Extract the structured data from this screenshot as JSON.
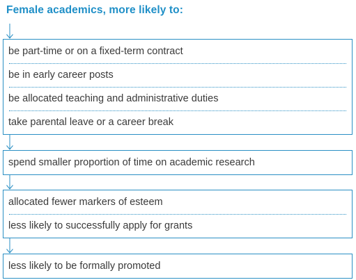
{
  "title": "Female academics, more likely to:",
  "groups": [
    {
      "items": [
        "be part-time or on a fixed-term contract",
        "be in early career posts",
        "be allocated teaching and administrative duties",
        "take parental leave or a career break"
      ]
    },
    {
      "items": [
        "spend smaller proportion of time on academic research"
      ]
    },
    {
      "items": [
        "allocated fewer markers of esteem",
        "less likely to successfully apply for grants"
      ]
    },
    {
      "items": [
        "less likely to be formally promoted"
      ]
    }
  ],
  "colors": {
    "accent": "#1f8fc7",
    "border": "#2a8fc4",
    "text": "#3a3a3a"
  }
}
